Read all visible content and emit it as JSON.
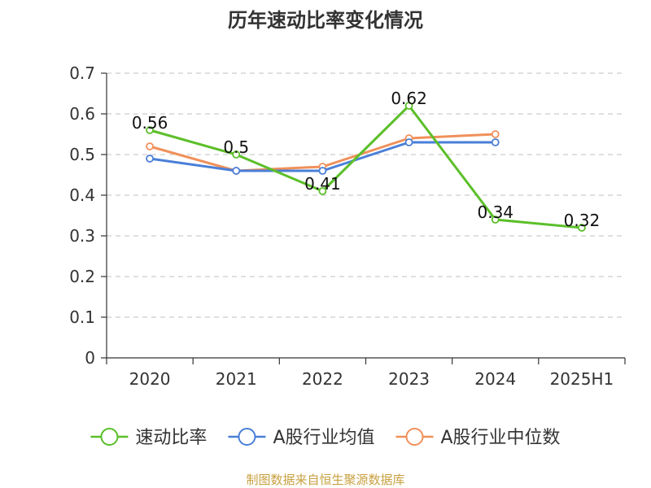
{
  "chart_data": {
    "type": "line",
    "title": "历年速动比率变化情况",
    "categories": [
      "2020",
      "2021",
      "2022",
      "2023",
      "2024",
      "2025H1"
    ],
    "ylim": [
      0,
      0.7
    ],
    "yticks": [
      "0",
      "0.1",
      "0.2",
      "0.3",
      "0.4",
      "0.5",
      "0.6",
      "0.7"
    ],
    "ytick_values": [
      0,
      0.1,
      0.2,
      0.3,
      0.4,
      0.5,
      0.6,
      0.7
    ],
    "grid": true,
    "legend_position": "bottom",
    "series": [
      {
        "name": "速动比率",
        "color": "#5cbf2a",
        "values": [
          0.56,
          0.5,
          0.41,
          0.62,
          0.34,
          0.32
        ],
        "labels": [
          "0.56",
          "0.5",
          "0.41",
          "0.62",
          "0.34",
          "0.32"
        ],
        "show_labels": true
      },
      {
        "name": "A股行业均值",
        "color": "#4a7fd8",
        "values": [
          0.49,
          0.46,
          0.46,
          0.53,
          0.53,
          null
        ],
        "show_labels": false
      },
      {
        "name": "A股行业中位数",
        "color": "#f0905a",
        "values": [
          0.52,
          0.46,
          0.47,
          0.54,
          0.55,
          null
        ],
        "show_labels": false
      }
    ]
  },
  "source_text": "制图数据来自恒生聚源数据库"
}
